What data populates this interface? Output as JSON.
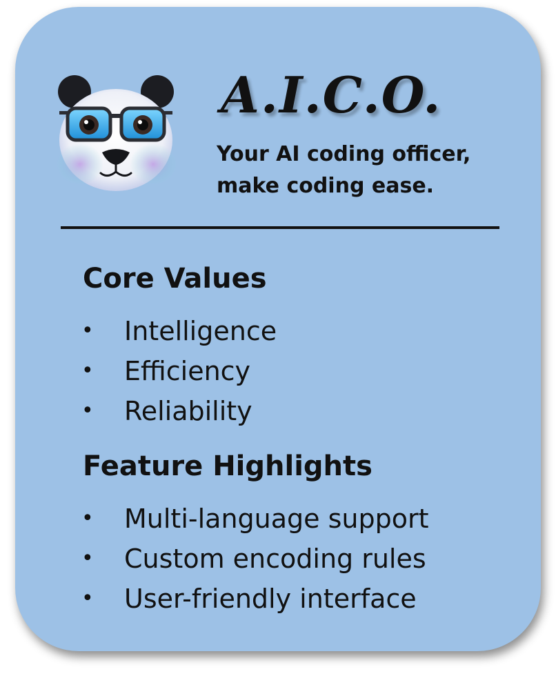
{
  "header": {
    "title": "A.I.C.O.",
    "tagline_line1": "Your AI coding officer,",
    "tagline_line2": "make coding ease."
  },
  "core_values": {
    "heading": "Core Values",
    "items": [
      "Intelligence",
      "Efficiency",
      "Reliability"
    ]
  },
  "feature_highlights": {
    "heading": "Feature Highlights",
    "items": [
      "Multi-language support",
      "Custom encoding rules",
      "User-friendly interface"
    ]
  },
  "bullet": "•",
  "logo": {
    "icon": "panda-with-sunglasses-icon"
  },
  "colors": {
    "card_background": "#9dc1e6",
    "text": "#111111",
    "lens": "#3fb4f0"
  }
}
